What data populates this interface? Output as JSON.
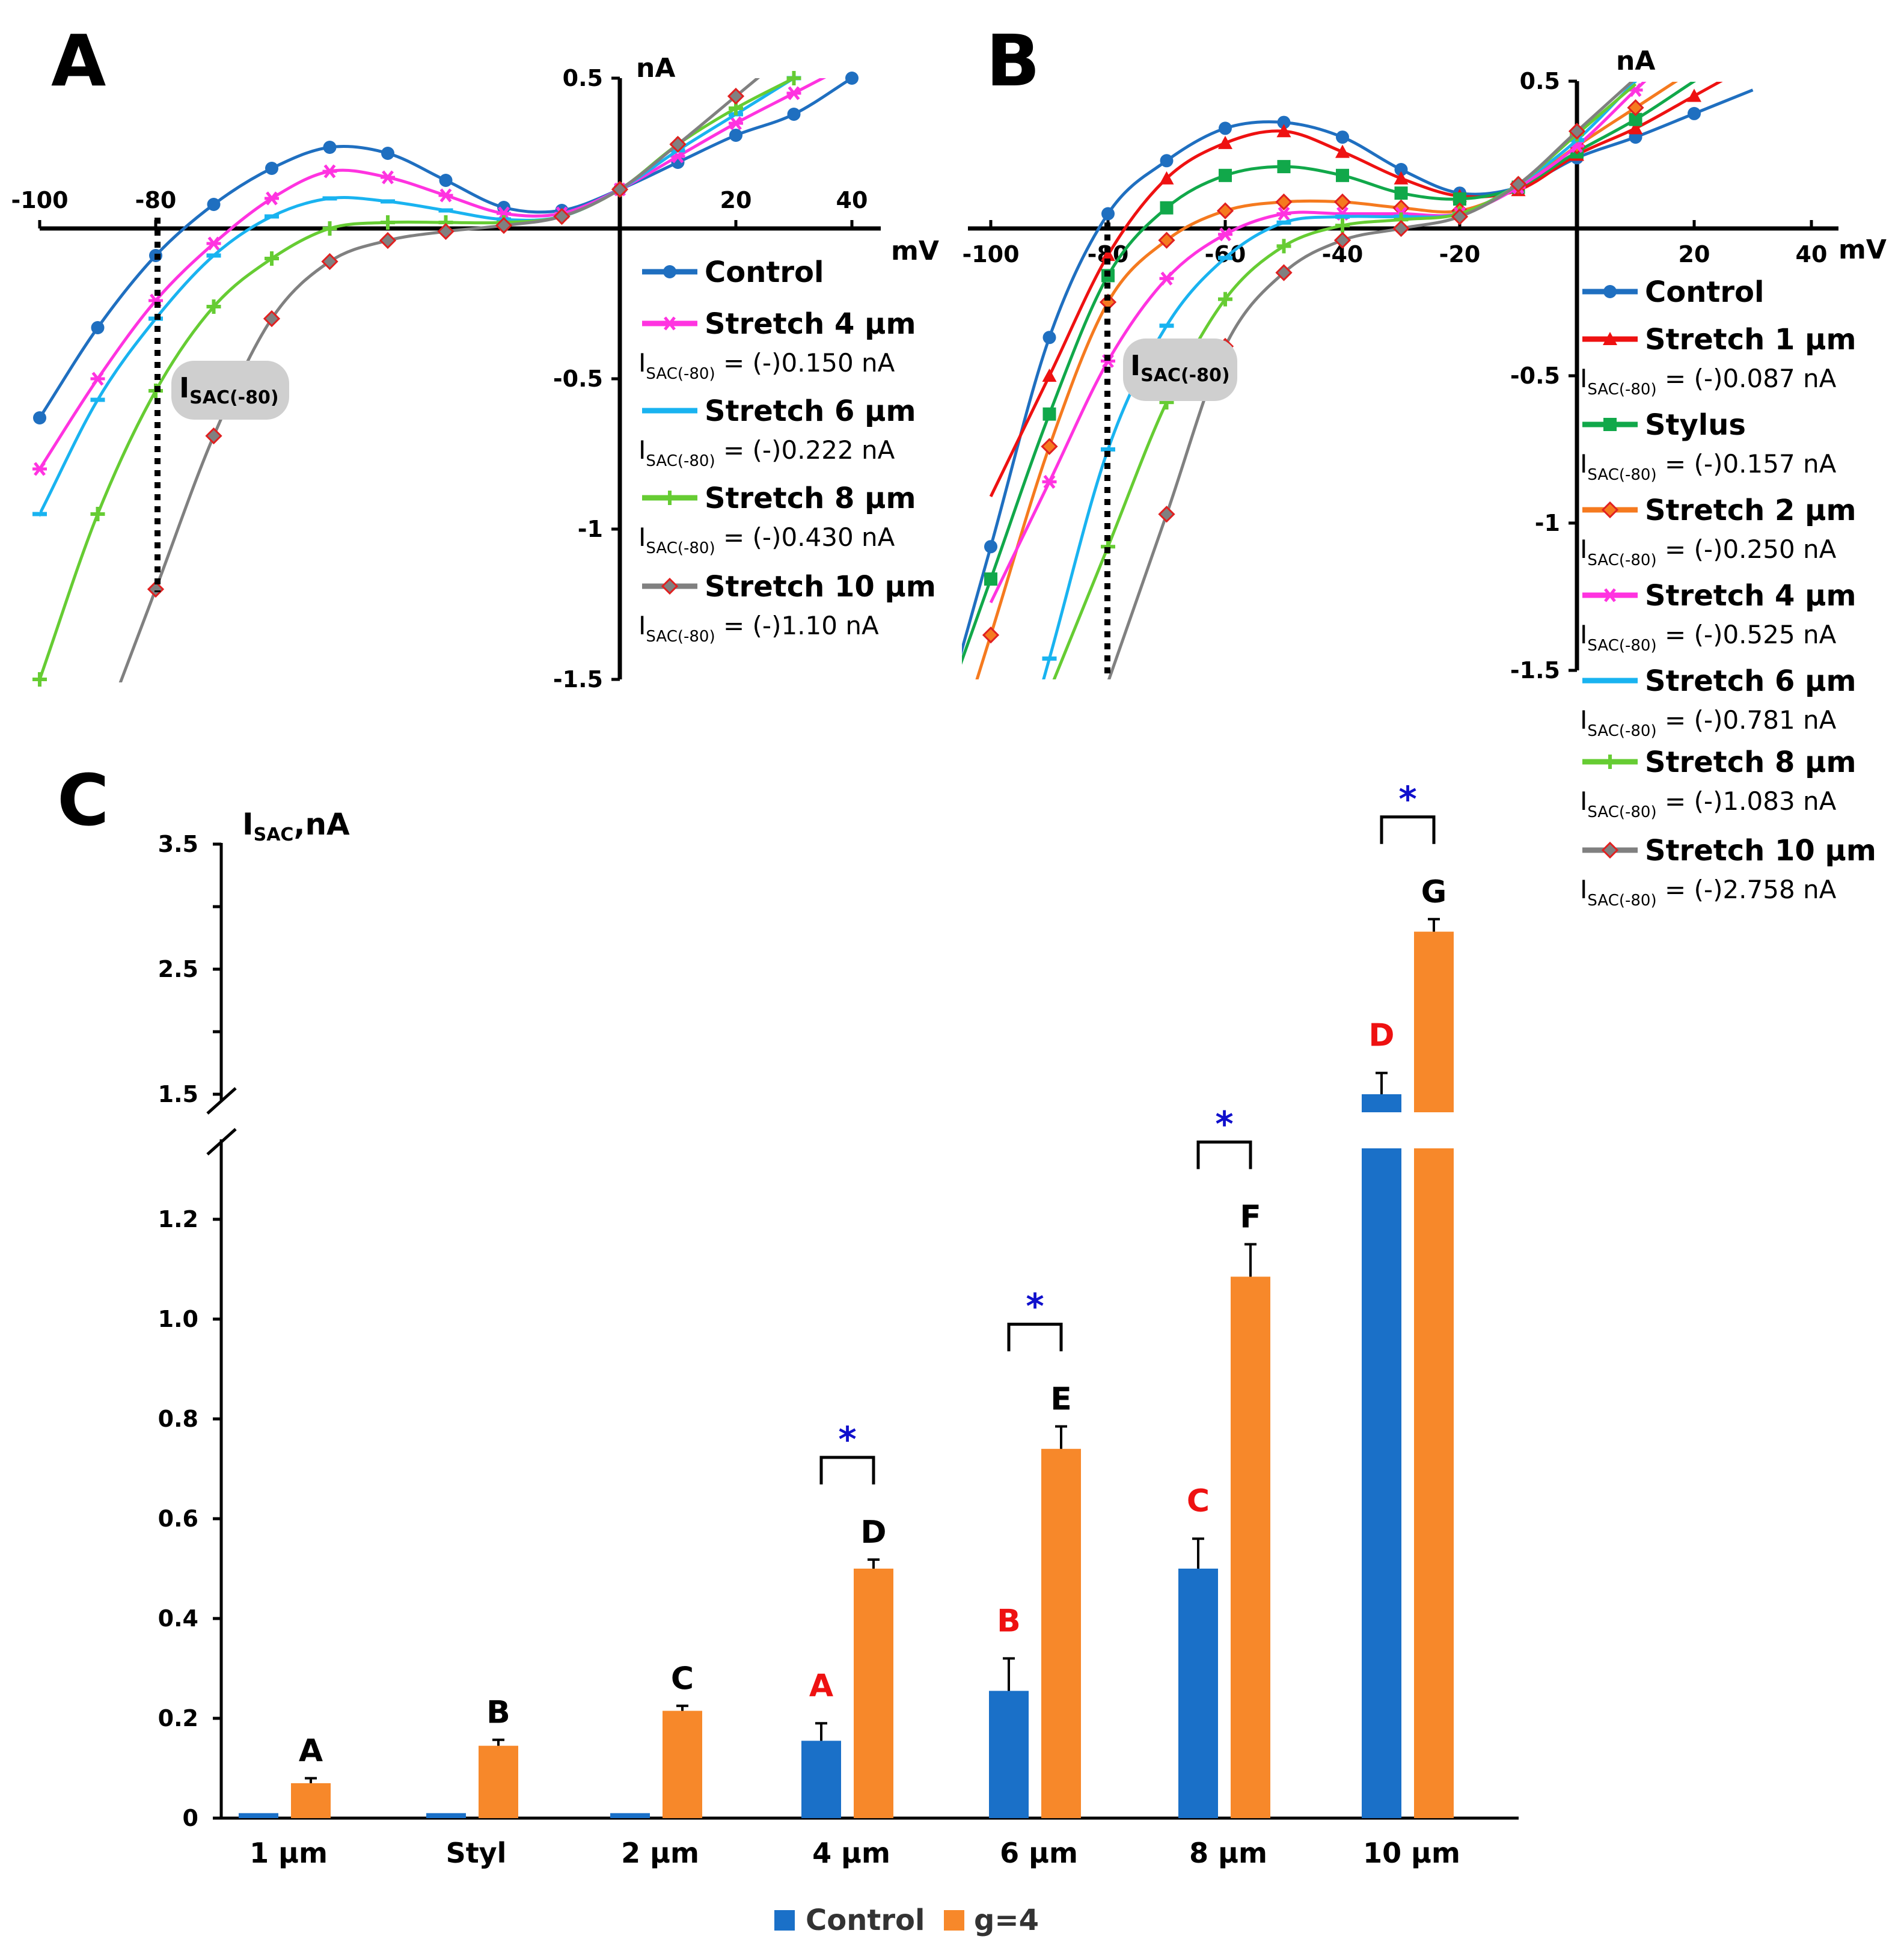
{
  "chart_data": [
    {
      "panel": "A",
      "type": "line",
      "title": "",
      "xlabel": "mV",
      "ylabel": "nA",
      "xlim": [
        -100,
        40
      ],
      "ylim": [
        -1.5,
        0.5
      ],
      "xticks": [
        "-100",
        "-80",
        "20",
        "40"
      ],
      "yticks": [
        "0.5",
        "-0.5",
        "-1",
        "-1.5"
      ],
      "x": [
        -100,
        -90,
        -80,
        -70,
        -60,
        -50,
        -40,
        -30,
        -20,
        -10,
        0,
        10,
        20,
        30,
        40
      ],
      "series": [
        {
          "name": "Control",
          "color": "#1f6fc0",
          "marker": "circle",
          "isac_label": "",
          "values": [
            -0.63,
            -0.33,
            -0.09,
            0.08,
            0.2,
            0.27,
            0.25,
            0.16,
            0.07,
            0.06,
            0.13,
            0.22,
            0.31,
            0.38,
            0.5
          ]
        },
        {
          "name": "Stretch 4 µm",
          "color": "#ff33e0",
          "marker": "asterisk",
          "isac_label": "(-)0.150 nA",
          "values": [
            -0.8,
            -0.5,
            -0.24,
            -0.05,
            0.1,
            0.19,
            0.17,
            0.11,
            0.05,
            0.05,
            0.13,
            0.24,
            0.35,
            0.45,
            null
          ]
        },
        {
          "name": "Stretch 6 µm",
          "color": "#19b3f0",
          "marker": "dash",
          "isac_label": "(-)0.222 nA",
          "values": [
            -0.95,
            -0.57,
            -0.3,
            -0.09,
            0.04,
            0.1,
            0.09,
            0.06,
            0.03,
            0.04,
            0.13,
            0.26,
            0.38,
            0.5,
            null
          ]
        },
        {
          "name": "Stretch 8 µm",
          "color": "#66cc33",
          "marker": "plus",
          "isac_label": "(-)0.430 nA",
          "values": [
            -1.5,
            -0.95,
            -0.54,
            -0.26,
            -0.1,
            0.0,
            0.02,
            0.02,
            0.02,
            0.04,
            0.13,
            0.28,
            0.4,
            0.5,
            null
          ]
        },
        {
          "name": "Stretch 10 µm",
          "color": "#808080",
          "marker": "diamond",
          "isac_label": "(-)1.10 nA",
          "values": [
            null,
            null,
            -1.2,
            -0.69,
            -0.3,
            -0.11,
            -0.04,
            -0.01,
            0.01,
            0.04,
            0.13,
            0.28,
            0.44,
            null,
            null
          ]
        }
      ],
      "annotation": "I SAC(-80) at -80 mV (dotted line)"
    },
    {
      "panel": "B",
      "type": "line",
      "title": "",
      "xlabel": "mV",
      "ylabel": "nA",
      "xlim": [
        -100,
        40
      ],
      "ylim": [
        -1.5,
        0.5
      ],
      "xticks": [
        "-100",
        "-80",
        "-60",
        "-40",
        "-20",
        "20",
        "40"
      ],
      "yticks": [
        "0.5",
        "-0.5",
        "-1",
        "-1.5"
      ],
      "x": [
        -100,
        -90,
        -80,
        -70,
        -60,
        -50,
        -40,
        -30,
        -20,
        -10,
        0,
        10,
        20
      ],
      "series": [
        {
          "name": "Control",
          "color": "#1f6fc0",
          "marker": "circle",
          "isac_label": "",
          "values": [
            -1.08,
            -0.37,
            0.05,
            0.23,
            0.34,
            0.36,
            0.31,
            0.2,
            0.12,
            0.14,
            0.24,
            0.31,
            0.39
          ]
        },
        {
          "name": "Stretch 1 µm",
          "color": "#ee1111",
          "marker": "triangle",
          "isac_label": "(-)0.087 nA",
          "values": [
            null,
            -0.5,
            -0.09,
            0.17,
            0.29,
            0.33,
            0.26,
            0.17,
            0.11,
            0.13,
            0.25,
            0.34,
            0.45
          ]
        },
        {
          "name": "Stylus",
          "color": "#11a84a",
          "marker": "square",
          "isac_label": "(-)0.157 nA",
          "values": [
            -1.19,
            -0.63,
            -0.16,
            0.07,
            0.18,
            0.21,
            0.18,
            0.12,
            0.1,
            0.14,
            0.26,
            0.37,
            0.5
          ]
        },
        {
          "name": "Stretch 2 µm",
          "color": "#f57a1f",
          "marker": "diamond",
          "isac_label": "(-)0.250 nA",
          "values": [
            -1.38,
            -0.74,
            -0.25,
            -0.04,
            0.06,
            0.09,
            0.09,
            0.07,
            0.06,
            0.14,
            0.28,
            0.41,
            null
          ]
        },
        {
          "name": "Stretch 4 µm",
          "color": "#ff33e0",
          "marker": "asterisk",
          "isac_label": "(-)0.525 nA",
          "values": [
            null,
            -0.86,
            -0.45,
            -0.17,
            -0.02,
            0.05,
            0.05,
            0.05,
            0.05,
            0.14,
            0.28,
            0.47,
            null
          ]
        },
        {
          "name": "Stretch 6 µm",
          "color": "#19b3f0",
          "marker": "dash",
          "isac_label": "(-)0.781 nA",
          "values": [
            null,
            -1.46,
            -0.75,
            -0.33,
            -0.1,
            0.02,
            0.04,
            0.04,
            0.05,
            0.15,
            0.3,
            0.5,
            null
          ]
        },
        {
          "name": "Stretch 8 µm",
          "color": "#66cc33",
          "marker": "plus",
          "isac_label": "(-)1.083 nA",
          "values": [
            null,
            null,
            -1.08,
            -0.59,
            -0.24,
            -0.06,
            0.01,
            0.03,
            0.05,
            0.15,
            0.32,
            null,
            null
          ]
        },
        {
          "name": "Stretch 10 µm",
          "color": "#808080",
          "marker": "diamond",
          "isac_label": "(-)2.758 nA",
          "values": [
            null,
            null,
            null,
            -0.97,
            -0.4,
            -0.15,
            -0.04,
            0.0,
            0.04,
            0.15,
            0.33,
            null,
            null
          ]
        }
      ],
      "annotation": "I SAC(-80) at -80 mV (dotted line)"
    },
    {
      "panel": "C",
      "type": "bar",
      "title": "",
      "xlabel": "",
      "ylabel": "I SAC ,nA",
      "axis_break": true,
      "lower_range": [
        0,
        1.35
      ],
      "upper_range": [
        1.35,
        3.5
      ],
      "yticks": [
        "0",
        "0.2",
        "0.4",
        "0.6",
        "0.8",
        "1.0",
        "1.2",
        "1.5",
        "2.5",
        "3.5"
      ],
      "categories": [
        "1 µm",
        "Styl",
        "2 µm",
        "4 µm",
        "6 µm",
        "8 µm",
        "10 µm"
      ],
      "series": [
        {
          "name": "Control",
          "color": "#1a70c8",
          "values": [
            0.01,
            0.01,
            0.01,
            0.155,
            0.255,
            0.5,
            1.45
          ],
          "errors": [
            0,
            0,
            0,
            0.035,
            0.065,
            0.06,
            0.22
          ],
          "letters": [
            "",
            "",
            "",
            "A",
            "B",
            "C",
            "D"
          ],
          "letter_color": "#ee1111"
        },
        {
          "name": "g=4",
          "color": "#f7882a",
          "values": [
            0.07,
            0.145,
            0.215,
            0.5,
            0.74,
            1.085,
            2.8
          ],
          "errors": [
            0.01,
            0.012,
            0.01,
            0.018,
            0.045,
            0.065,
            0.1
          ],
          "letters": [
            "A",
            "B",
            "C",
            "D",
            "E",
            "F",
            "G"
          ],
          "letter_color": "#000000"
        }
      ],
      "significance": {
        "symbol": "*",
        "color": "#1010cc",
        "categories": [
          "4 µm",
          "6 µm",
          "8 µm",
          "10 µm"
        ]
      }
    }
  ],
  "panel_labels": {
    "a": "A",
    "b": "B",
    "c": "C"
  },
  "axis_text": {
    "a_unit_y": "nA",
    "a_unit_x": "mV",
    "b_unit_y": "nA",
    "b_unit_x": "mV",
    "isac_main": "I",
    "isac_sub": "SAC(-80)",
    "isac_text_main": "I",
    "isac_text_sub": "SAC(-80)",
    "isac_eq": " = ",
    "c_ylabel_main": "I",
    "c_ylabel_sub": "SAC",
    "c_ylabel_tail": ",nA",
    "c_legend_control": "Control",
    "c_legend_g4": "g=4"
  }
}
